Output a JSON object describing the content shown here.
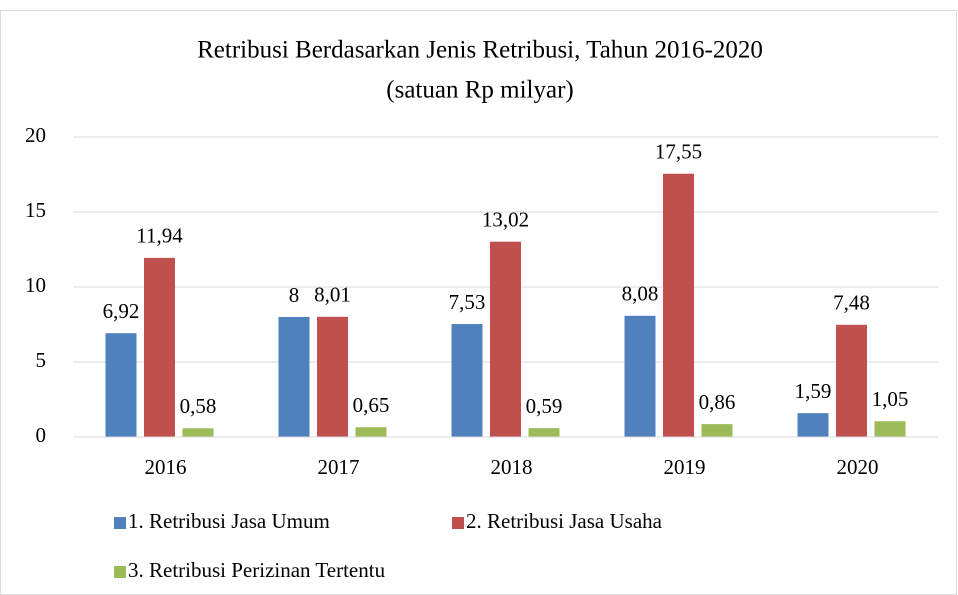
{
  "chart_data": {
    "type": "bar",
    "title": "Retribusi Berdasarkan Jenis Retribusi, Tahun 2016-2020",
    "subtitle": "(satuan Rp milyar)",
    "categories": [
      "2016",
      "2017",
      "2018",
      "2019",
      "2020"
    ],
    "series": [
      {
        "name": "1. Retribusi Jasa Umum",
        "color": "#4f81bd",
        "values": [
          6.92,
          8,
          7.53,
          8.08,
          1.59
        ],
        "value_labels": [
          "6,92",
          "8",
          "7,53",
          "8,08",
          "1,59"
        ]
      },
      {
        "name": "2. Retribusi Jasa Usaha",
        "color": "#c0504d",
        "values": [
          11.94,
          8.01,
          13.02,
          17.55,
          7.48
        ],
        "value_labels": [
          "11,94",
          "8,01",
          "13,02",
          "17,55",
          "7,48"
        ]
      },
      {
        "name": "3. Retribusi Perizinan Tertentu",
        "color": "#9bbb59",
        "values": [
          0.58,
          0.65,
          0.59,
          0.86,
          1.05
        ],
        "value_labels": [
          "0,58",
          "0,65",
          "0,59",
          "0,86",
          "1,05"
        ]
      }
    ],
    "ylim": [
      0,
      20
    ],
    "yticks": [
      0,
      5,
      10,
      15,
      20
    ],
    "grid": true,
    "legend": "bottom"
  }
}
